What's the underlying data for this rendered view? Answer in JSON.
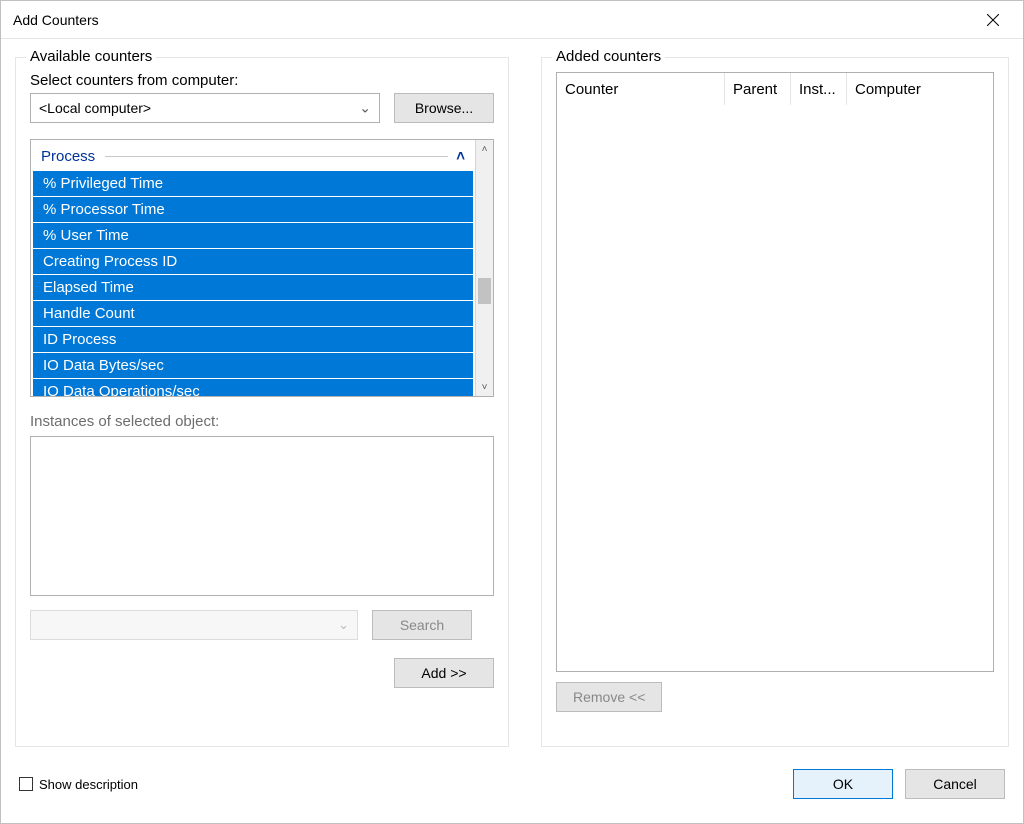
{
  "window": {
    "title": "Add Counters"
  },
  "left": {
    "group_label": "Available counters",
    "select_label": "Select counters from computer:",
    "computer_value": "<Local computer>",
    "browse_label": "Browse...",
    "counter_group": "Process",
    "counter_items": [
      "% Privileged Time",
      "% Processor Time",
      "% User Time",
      "Creating Process ID",
      "Elapsed Time",
      "Handle Count",
      "ID Process",
      "IO Data Bytes/sec",
      "IO Data Operations/sec"
    ],
    "instances_label": "Instances of selected object:",
    "search_label": "Search",
    "add_label": "Add >>"
  },
  "right": {
    "group_label": "Added counters",
    "columns": {
      "counter": "Counter",
      "parent": "Parent",
      "instance": "Inst...",
      "computer": "Computer"
    },
    "remove_label": "Remove <<"
  },
  "footer": {
    "show_description_label": "Show description",
    "ok_label": "OK",
    "cancel_label": "Cancel"
  },
  "style": {
    "selection_bg": "#0078d7",
    "selection_fg": "#ffffff",
    "accent_border": "#0078d7",
    "button_bg": "#e5e5e5",
    "border_color": "#b0b0b0",
    "disabled_text": "#888888",
    "link_text": "#003399"
  }
}
